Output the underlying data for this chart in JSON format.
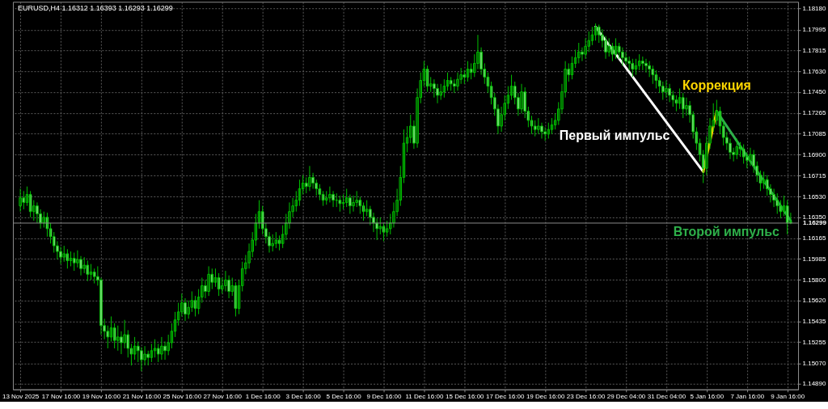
{
  "chart_data": {
    "type": "candlestick",
    "title": "EURUSD,H4 1.16312 1.16393 1.16293 1.16299",
    "categories": [
      "13 Nov 2025",
      null,
      null,
      null,
      null,
      null,
      null,
      null,
      null,
      null,
      null,
      null,
      "17 Nov 16:00",
      null,
      null,
      null,
      null,
      null,
      null,
      null,
      null,
      null,
      null,
      null,
      "19 Nov 16:00",
      null,
      null,
      null,
      null,
      null,
      null,
      null,
      null,
      null,
      null,
      null,
      "21 Nov 16:00",
      null,
      null,
      null,
      null,
      null,
      null,
      null,
      null,
      null,
      null,
      null,
      "25 Nov 16:00",
      null,
      null,
      null,
      null,
      null,
      null,
      null,
      null,
      null,
      null,
      null,
      "27 Nov 16:00",
      null,
      null,
      null,
      null,
      null,
      null,
      null,
      null,
      null,
      null,
      null,
      "1 Dec 16:00",
      null,
      null,
      null,
      null,
      null,
      null,
      null,
      null,
      null,
      null,
      null,
      "3 Dec 16:00",
      null,
      null,
      null,
      null,
      null,
      null,
      null,
      null,
      null,
      null,
      null,
      "5 Dec 16:00",
      null,
      null,
      null,
      null,
      null,
      null,
      null,
      null,
      null,
      null,
      null,
      "9 Dec 16:00",
      null,
      null,
      null,
      null,
      null,
      null,
      null,
      null,
      null,
      null,
      null,
      "11 Dec 16:00",
      null,
      null,
      null,
      null,
      null,
      null,
      null,
      null,
      null,
      null,
      null,
      "15 Dec 16:00",
      null,
      null,
      null,
      null,
      null,
      null,
      null,
      null,
      null,
      null,
      null,
      "17 Dec 16:00",
      null,
      null,
      null,
      null,
      null,
      null,
      null,
      null,
      null,
      null,
      null,
      "19 Dec 16:00",
      null,
      null,
      null,
      null,
      null,
      null,
      null,
      null,
      null,
      null,
      null,
      "23 Dec 16:00",
      null,
      null,
      null,
      null,
      null,
      null,
      null,
      null,
      null,
      null,
      null,
      "29 Dec 04:00",
      null,
      null,
      null,
      null,
      null,
      null,
      null,
      null,
      null,
      null,
      null,
      "31 Dec 04:00",
      null,
      null,
      null,
      null,
      null,
      null,
      null,
      null,
      null,
      null,
      null,
      "5 Jan 16:00",
      null,
      null,
      null,
      null,
      null,
      null,
      null,
      null,
      null,
      null,
      null,
      "7 Jan 16:00",
      null,
      null,
      null,
      null,
      null,
      null,
      null,
      null,
      null,
      null,
      null,
      "9 Jan 16:00",
      null
    ],
    "ohlc": [
      [
        1.1645,
        1.166,
        1.164,
        1.1652
      ],
      [
        1.1652,
        1.1658,
        1.1642,
        1.1648
      ],
      [
        1.1648,
        1.1662,
        1.1645,
        1.1655
      ],
      [
        1.1655,
        1.1658,
        1.1635,
        1.164
      ],
      [
        1.164,
        1.165,
        1.1632,
        1.1645
      ],
      [
        1.1645,
        1.1648,
        1.163,
        1.1638
      ],
      [
        1.1638,
        1.1642,
        1.1625,
        1.163
      ],
      [
        1.163,
        1.164,
        1.1626,
        1.1635
      ],
      [
        1.1635,
        1.1639,
        1.1618,
        1.1625
      ],
      [
        1.1625,
        1.163,
        1.1612,
        1.1618
      ],
      [
        1.1618,
        1.1622,
        1.1604,
        1.161
      ],
      [
        1.161,
        1.1614,
        1.1598,
        1.1605
      ],
      [
        1.1605,
        1.1609,
        1.1594,
        1.16
      ],
      [
        1.16,
        1.161,
        1.1596,
        1.1603
      ],
      [
        1.1603,
        1.1607,
        1.159,
        1.1597
      ],
      [
        1.1597,
        1.1605,
        1.1592,
        1.1599
      ],
      [
        1.1599,
        1.1604,
        1.1588,
        1.1595
      ],
      [
        1.1595,
        1.1606,
        1.1591,
        1.1598
      ],
      [
        1.1598,
        1.1601,
        1.1584,
        1.159
      ],
      [
        1.159,
        1.16,
        1.1586,
        1.1593
      ],
      [
        1.1593,
        1.1597,
        1.1579,
        1.1585
      ],
      [
        1.1585,
        1.1594,
        1.158,
        1.1587
      ],
      [
        1.1587,
        1.159,
        1.1577,
        1.1583
      ],
      [
        1.1583,
        1.1592,
        1.1575,
        1.158
      ],
      [
        1.158,
        1.1582,
        1.1532,
        1.154
      ],
      [
        1.154,
        1.1546,
        1.1528,
        1.1535
      ],
      [
        1.1535,
        1.154,
        1.152,
        1.153
      ],
      [
        1.153,
        1.1548,
        1.1526,
        1.1538
      ],
      [
        1.1538,
        1.1542,
        1.152,
        1.1527
      ],
      [
        1.1527,
        1.154,
        1.1518,
        1.153
      ],
      [
        1.153,
        1.1535,
        1.1515,
        1.1525
      ],
      [
        1.1525,
        1.1545,
        1.152,
        1.1532
      ],
      [
        1.1532,
        1.1536,
        1.1512,
        1.152
      ],
      [
        1.152,
        1.1524,
        1.1505,
        1.1515
      ],
      [
        1.1515,
        1.153,
        1.151,
        1.1522
      ],
      [
        1.1522,
        1.1526,
        1.1508,
        1.1518
      ],
      [
        1.1518,
        1.1521,
        1.15,
        1.151
      ],
      [
        1.151,
        1.1522,
        1.1505,
        1.1515
      ],
      [
        1.1515,
        1.1518,
        1.1505,
        1.1512
      ],
      [
        1.1512,
        1.1524,
        1.1508,
        1.1518
      ],
      [
        1.1518,
        1.1528,
        1.1512,
        1.152
      ],
      [
        1.152,
        1.1524,
        1.1508,
        1.1515
      ],
      [
        1.1515,
        1.153,
        1.151,
        1.1522
      ],
      [
        1.1522,
        1.1526,
        1.151,
        1.1518
      ],
      [
        1.1518,
        1.1532,
        1.1514,
        1.1525
      ],
      [
        1.1525,
        1.1542,
        1.152,
        1.1535
      ],
      [
        1.1535,
        1.1552,
        1.153,
        1.1545
      ],
      [
        1.1545,
        1.156,
        1.154,
        1.1552
      ],
      [
        1.1552,
        1.1568,
        1.1548,
        1.156
      ],
      [
        1.156,
        1.1564,
        1.1544,
        1.155
      ],
      [
        1.155,
        1.1562,
        1.1546,
        1.1556
      ],
      [
        1.1556,
        1.157,
        1.1552,
        1.1562
      ],
      [
        1.1562,
        1.1566,
        1.1548,
        1.1555
      ],
      [
        1.1555,
        1.1572,
        1.155,
        1.1565
      ],
      [
        1.1565,
        1.1582,
        1.156,
        1.1575
      ],
      [
        1.1575,
        1.158,
        1.1564,
        1.157
      ],
      [
        1.157,
        1.1592,
        1.1566,
        1.1585
      ],
      [
        1.1585,
        1.159,
        1.1572,
        1.1578
      ],
      [
        1.1578,
        1.159,
        1.1574,
        1.1582
      ],
      [
        1.1582,
        1.1586,
        1.1566,
        1.1572
      ],
      [
        1.1572,
        1.1582,
        1.1568,
        1.1575
      ],
      [
        1.1575,
        1.1588,
        1.157,
        1.158
      ],
      [
        1.158,
        1.1584,
        1.1564,
        1.157
      ],
      [
        1.157,
        1.1582,
        1.1566,
        1.1575
      ],
      [
        1.1575,
        1.1578,
        1.1548,
        1.1555
      ],
      [
        1.1555,
        1.158,
        1.155,
        1.1575
      ],
      [
        1.1575,
        1.1596,
        1.157,
        1.159
      ],
      [
        1.159,
        1.1602,
        1.1585,
        1.1595
      ],
      [
        1.1595,
        1.1612,
        1.159,
        1.1605
      ],
      [
        1.1605,
        1.1622,
        1.16,
        1.1615
      ],
      [
        1.1615,
        1.1638,
        1.161,
        1.163
      ],
      [
        1.163,
        1.165,
        1.1625,
        1.164
      ],
      [
        1.164,
        1.1645,
        1.162,
        1.1625
      ],
      [
        1.1625,
        1.163,
        1.1612,
        1.1618
      ],
      [
        1.1618,
        1.1622,
        1.1604,
        1.161
      ],
      [
        1.161,
        1.162,
        1.1605,
        1.1612
      ],
      [
        1.1612,
        1.1622,
        1.1608,
        1.1615
      ],
      [
        1.1615,
        1.1619,
        1.1606,
        1.1612
      ],
      [
        1.1612,
        1.1628,
        1.1608,
        1.162
      ],
      [
        1.162,
        1.1638,
        1.1615,
        1.163
      ],
      [
        1.163,
        1.1648,
        1.1625,
        1.164
      ],
      [
        1.164,
        1.1652,
        1.1635,
        1.1645
      ],
      [
        1.1645,
        1.1658,
        1.164,
        1.165
      ],
      [
        1.165,
        1.1668,
        1.1645,
        1.166
      ],
      [
        1.166,
        1.1672,
        1.1655,
        1.1665
      ],
      [
        1.1665,
        1.167,
        1.1656,
        1.1662
      ],
      [
        1.1662,
        1.168,
        1.1658,
        1.167
      ],
      [
        1.167,
        1.1674,
        1.166,
        1.1665
      ],
      [
        1.1665,
        1.1668,
        1.1654,
        1.166
      ],
      [
        1.166,
        1.1664,
        1.165,
        1.1655
      ],
      [
        1.1655,
        1.1658,
        1.1645,
        1.165
      ],
      [
        1.165,
        1.1658,
        1.1646,
        1.1652
      ],
      [
        1.1652,
        1.1662,
        1.1648,
        1.1655
      ],
      [
        1.1655,
        1.1658,
        1.1644,
        1.165
      ],
      [
        1.165,
        1.1656,
        1.1644,
        1.165
      ],
      [
        1.165,
        1.1654,
        1.164,
        1.1647
      ],
      [
        1.1647,
        1.1655,
        1.1642,
        1.1648
      ],
      [
        1.1648,
        1.166,
        1.1644,
        1.1652
      ],
      [
        1.1652,
        1.1655,
        1.1638,
        1.1645
      ],
      [
        1.1645,
        1.1654,
        1.164,
        1.1648
      ],
      [
        1.1648,
        1.1658,
        1.1644,
        1.165
      ],
      [
        1.165,
        1.1653,
        1.1638,
        1.1645
      ],
      [
        1.1645,
        1.1648,
        1.1632,
        1.164
      ],
      [
        1.164,
        1.165,
        1.1636,
        1.1642
      ],
      [
        1.1642,
        1.1645,
        1.1628,
        1.1635
      ],
      [
        1.1635,
        1.1639,
        1.1622,
        1.163
      ],
      [
        1.163,
        1.1634,
        1.1615,
        1.1625
      ],
      [
        1.1625,
        1.1635,
        1.162,
        1.1627
      ],
      [
        1.1627,
        1.163,
        1.1614,
        1.1622
      ],
      [
        1.1622,
        1.1632,
        1.1618,
        1.1625
      ],
      [
        1.1625,
        1.1638,
        1.162,
        1.163
      ],
      [
        1.163,
        1.1648,
        1.1626,
        1.164
      ],
      [
        1.164,
        1.166,
        1.1636,
        1.165
      ],
      [
        1.165,
        1.168,
        1.1645,
        1.167
      ],
      [
        1.167,
        1.1712,
        1.1665,
        1.17
      ],
      [
        1.17,
        1.1715,
        1.1692,
        1.1705
      ],
      [
        1.1705,
        1.1725,
        1.17,
        1.1715
      ],
      [
        1.1715,
        1.172,
        1.1695,
        1.17
      ],
      [
        1.17,
        1.1748,
        1.1696,
        1.174
      ],
      [
        1.174,
        1.1762,
        1.1735,
        1.1755
      ],
      [
        1.1755,
        1.1772,
        1.175,
        1.1765
      ],
      [
        1.1765,
        1.1768,
        1.1745,
        1.175
      ],
      [
        1.175,
        1.1758,
        1.1745,
        1.1752
      ],
      [
        1.1752,
        1.1756,
        1.174,
        1.1748
      ],
      [
        1.1748,
        1.1752,
        1.1735,
        1.1742
      ],
      [
        1.1742,
        1.1752,
        1.1738,
        1.1745
      ],
      [
        1.1745,
        1.1756,
        1.174,
        1.175
      ],
      [
        1.175,
        1.1762,
        1.1746,
        1.1755
      ],
      [
        1.1755,
        1.1758,
        1.1746,
        1.1752
      ],
      [
        1.1752,
        1.1756,
        1.1744,
        1.175
      ],
      [
        1.175,
        1.1762,
        1.1746,
        1.1756
      ],
      [
        1.1756,
        1.1766,
        1.1752,
        1.176
      ],
      [
        1.176,
        1.1764,
        1.1752,
        1.1758
      ],
      [
        1.1758,
        1.1772,
        1.1754,
        1.1765
      ],
      [
        1.1765,
        1.177,
        1.1756,
        1.1762
      ],
      [
        1.1762,
        1.1778,
        1.1758,
        1.177
      ],
      [
        1.177,
        1.1795,
        1.1765,
        1.178
      ],
      [
        1.178,
        1.1784,
        1.176,
        1.1765
      ],
      [
        1.1765,
        1.177,
        1.1752,
        1.1758
      ],
      [
        1.1758,
        1.1762,
        1.1744,
        1.175
      ],
      [
        1.175,
        1.1754,
        1.1734,
        1.174
      ],
      [
        1.174,
        1.1744,
        1.1724,
        1.173
      ],
      [
        1.173,
        1.1734,
        1.1708,
        1.1715
      ],
      [
        1.1715,
        1.1732,
        1.171,
        1.1725
      ],
      [
        1.1725,
        1.1742,
        1.172,
        1.1735
      ],
      [
        1.1735,
        1.175,
        1.173,
        1.1742
      ],
      [
        1.1742,
        1.176,
        1.1738,
        1.175
      ],
      [
        1.175,
        1.1754,
        1.1734,
        1.174
      ],
      [
        1.174,
        1.1744,
        1.1724,
        1.173
      ],
      [
        1.173,
        1.1752,
        1.1726,
        1.1745
      ],
      [
        1.1745,
        1.1749,
        1.1722,
        1.1728
      ],
      [
        1.1728,
        1.1732,
        1.1714,
        1.172
      ],
      [
        1.172,
        1.1724,
        1.1708,
        1.1715
      ],
      [
        1.1715,
        1.172,
        1.1706,
        1.1712
      ],
      [
        1.1712,
        1.1722,
        1.1708,
        1.1715
      ],
      [
        1.1715,
        1.1718,
        1.1704,
        1.171
      ],
      [
        1.171,
        1.1714,
        1.1702,
        1.1708
      ],
      [
        1.1708,
        1.1718,
        1.1704,
        1.1712
      ],
      [
        1.1712,
        1.1722,
        1.1708,
        1.1716
      ],
      [
        1.1716,
        1.1726,
        1.1712,
        1.172
      ],
      [
        1.172,
        1.1736,
        1.1716,
        1.173
      ],
      [
        1.173,
        1.1752,
        1.1726,
        1.1745
      ],
      [
        1.1745,
        1.1772,
        1.174,
        1.1765
      ],
      [
        1.1765,
        1.177,
        1.1754,
        1.176
      ],
      [
        1.176,
        1.1776,
        1.1756,
        1.177
      ],
      [
        1.177,
        1.1782,
        1.1766,
        1.1775
      ],
      [
        1.1775,
        1.1788,
        1.177,
        1.178
      ],
      [
        1.178,
        1.1784,
        1.1772,
        1.1778
      ],
      [
        1.1778,
        1.1792,
        1.1774,
        1.1785
      ],
      [
        1.1785,
        1.1798,
        1.178,
        1.179
      ],
      [
        1.179,
        1.1802,
        1.1786,
        1.1795
      ],
      [
        1.1795,
        1.1805,
        1.179,
        1.1802
      ],
      [
        1.1802,
        1.1804,
        1.1788,
        1.1795
      ],
      [
        1.1795,
        1.18,
        1.1784,
        1.179
      ],
      [
        1.179,
        1.1794,
        1.1774,
        1.178
      ],
      [
        1.178,
        1.1792,
        1.1776,
        1.1785
      ],
      [
        1.1785,
        1.1788,
        1.1772,
        1.1778
      ],
      [
        1.1778,
        1.1792,
        1.1774,
        1.1785
      ],
      [
        1.1785,
        1.1788,
        1.1774,
        1.178
      ],
      [
        1.178,
        1.1784,
        1.1768,
        1.1775
      ],
      [
        1.1775,
        1.178,
        1.1769,
        1.1772
      ],
      [
        1.1772,
        1.1776,
        1.1764,
        1.177
      ],
      [
        1.177,
        1.1774,
        1.1758,
        1.1765
      ],
      [
        1.1765,
        1.1774,
        1.176,
        1.1768
      ],
      [
        1.1768,
        1.1778,
        1.1764,
        1.1772
      ],
      [
        1.1772,
        1.1776,
        1.1764,
        1.177
      ],
      [
        1.177,
        1.1774,
        1.1762,
        1.1768
      ],
      [
        1.1768,
        1.1772,
        1.1758,
        1.1765
      ],
      [
        1.1765,
        1.1768,
        1.1752,
        1.176
      ],
      [
        1.176,
        1.1764,
        1.1748,
        1.1755
      ],
      [
        1.1755,
        1.1758,
        1.1744,
        1.175
      ],
      [
        1.175,
        1.1754,
        1.1738,
        1.1745
      ],
      [
        1.1745,
        1.1755,
        1.174,
        1.1748
      ],
      [
        1.1748,
        1.1752,
        1.1736,
        1.1742
      ],
      [
        1.1742,
        1.1746,
        1.1732,
        1.1738
      ],
      [
        1.1738,
        1.1742,
        1.1728,
        1.1735
      ],
      [
        1.1735,
        1.1748,
        1.173,
        1.174
      ],
      [
        1.174,
        1.1744,
        1.1722,
        1.173
      ],
      [
        1.173,
        1.174,
        1.1724,
        1.1733
      ],
      [
        1.1733,
        1.1737,
        1.1718,
        1.1725
      ],
      [
        1.1725,
        1.1728,
        1.1704,
        1.171
      ],
      [
        1.171,
        1.1714,
        1.1694,
        1.17
      ],
      [
        1.17,
        1.1704,
        1.1684,
        1.169
      ],
      [
        1.169,
        1.1694,
        1.1665,
        1.1678
      ],
      [
        1.1678,
        1.1706,
        1.1672,
        1.17
      ],
      [
        1.17,
        1.1722,
        1.1695,
        1.1715
      ],
      [
        1.1715,
        1.1735,
        1.171,
        1.172
      ],
      [
        1.172,
        1.1738,
        1.1716,
        1.1728
      ],
      [
        1.1728,
        1.1732,
        1.1708,
        1.1715
      ],
      [
        1.1715,
        1.1719,
        1.1698,
        1.1705
      ],
      [
        1.1705,
        1.171,
        1.1694,
        1.17
      ],
      [
        1.17,
        1.1704,
        1.1686,
        1.1692
      ],
      [
        1.1692,
        1.1696,
        1.1684,
        1.169
      ],
      [
        1.169,
        1.1704,
        1.1686,
        1.1697
      ],
      [
        1.1697,
        1.1701,
        1.1688,
        1.1695
      ],
      [
        1.1695,
        1.1699,
        1.1682,
        1.1688
      ],
      [
        1.1688,
        1.1692,
        1.1678,
        1.1685
      ],
      [
        1.1685,
        1.1696,
        1.168,
        1.169
      ],
      [
        1.169,
        1.1694,
        1.1674,
        1.168
      ],
      [
        1.168,
        1.1684,
        1.1666,
        1.1672
      ],
      [
        1.1672,
        1.1676,
        1.1658,
        1.1665
      ],
      [
        1.1665,
        1.1675,
        1.166,
        1.1668
      ],
      [
        1.1668,
        1.1672,
        1.1654,
        1.166
      ],
      [
        1.166,
        1.1664,
        1.1648,
        1.1655
      ],
      [
        1.1655,
        1.166,
        1.1644,
        1.165
      ],
      [
        1.165,
        1.1656,
        1.1638,
        1.1645
      ],
      [
        1.1645,
        1.165,
        1.1634,
        1.164
      ],
      [
        1.164,
        1.1654,
        1.1636,
        1.1645
      ],
      [
        1.1645,
        1.165,
        1.162,
        1.163
      ],
      [
        1.1631,
        1.1639,
        1.1629,
        1.163
      ]
    ],
    "color": "#00c000",
    "series": [
      {
        "type": "line",
        "name": "Первый импульс",
        "color": "#ffffff",
        "values": [
          null,
          null,
          null,
          null,
          null,
          null,
          null,
          null,
          null,
          null,
          null,
          null,
          null,
          null,
          null,
          null,
          null,
          null,
          null,
          null,
          null,
          null,
          null,
          null,
          null,
          null,
          null,
          null,
          null,
          null,
          null,
          null,
          null,
          null,
          null,
          null,
          null,
          null,
          null,
          null,
          null,
          null,
          null,
          null,
          null,
          null,
          null,
          null,
          null,
          null,
          null,
          null,
          null,
          null,
          null,
          null,
          null,
          null,
          null,
          null,
          null,
          null,
          null,
          null,
          null,
          null,
          null,
          null,
          null,
          null,
          null,
          null,
          null,
          null,
          null,
          null,
          null,
          null,
          null,
          null,
          null,
          null,
          null,
          null,
          null,
          null,
          null,
          null,
          null,
          null,
          null,
          null,
          null,
          null,
          null,
          null,
          null,
          null,
          null,
          null,
          null,
          null,
          null,
          null,
          null,
          null,
          null,
          null,
          null,
          null,
          null,
          null,
          null,
          null,
          null,
          null,
          null,
          null,
          null,
          null,
          null,
          null,
          null,
          null,
          null,
          null,
          null,
          null,
          null,
          null,
          null,
          null,
          null,
          null,
          null,
          null,
          null,
          null,
          null,
          null,
          null,
          null,
          null,
          null,
          null,
          null,
          null,
          null,
          null,
          null,
          null,
          null,
          null,
          null,
          null,
          null,
          null,
          null,
          null,
          null,
          null,
          null,
          null,
          null,
          null,
          null,
          null,
          null,
          null,
          null,
          null,
          1.1802,
          null,
          null,
          null,
          null,
          null,
          null,
          null,
          null,
          null,
          null,
          null,
          null,
          null,
          null,
          null,
          null,
          null,
          null,
          null,
          null,
          null,
          null,
          null,
          null,
          null,
          null,
          null,
          null,
          null,
          null,
          null,
          1.1675,
          null,
          null,
          null,
          null,
          null,
          null,
          null,
          null,
          null,
          null,
          null,
          null,
          null,
          null,
          null,
          null,
          null,
          null,
          null,
          null,
          null,
          null,
          null,
          null,
          null,
          null
        ]
      },
      {
        "type": "line",
        "name": "Коррекция",
        "color": "#ffd700",
        "values": [
          null,
          null,
          null,
          null,
          null,
          null,
          null,
          null,
          null,
          null,
          null,
          null,
          null,
          null,
          null,
          null,
          null,
          null,
          null,
          null,
          null,
          null,
          null,
          null,
          null,
          null,
          null,
          null,
          null,
          null,
          null,
          null,
          null,
          null,
          null,
          null,
          null,
          null,
          null,
          null,
          null,
          null,
          null,
          null,
          null,
          null,
          null,
          null,
          null,
          null,
          null,
          null,
          null,
          null,
          null,
          null,
          null,
          null,
          null,
          null,
          null,
          null,
          null,
          null,
          null,
          null,
          null,
          null,
          null,
          null,
          null,
          null,
          null,
          null,
          null,
          null,
          null,
          null,
          null,
          null,
          null,
          null,
          null,
          null,
          null,
          null,
          null,
          null,
          null,
          null,
          null,
          null,
          null,
          null,
          null,
          null,
          null,
          null,
          null,
          null,
          null,
          null,
          null,
          null,
          null,
          null,
          null,
          null,
          null,
          null,
          null,
          null,
          null,
          null,
          null,
          null,
          null,
          null,
          null,
          null,
          null,
          null,
          null,
          null,
          null,
          null,
          null,
          null,
          null,
          null,
          null,
          null,
          null,
          null,
          null,
          null,
          null,
          null,
          null,
          null,
          null,
          null,
          null,
          null,
          null,
          null,
          null,
          null,
          null,
          null,
          null,
          null,
          null,
          null,
          null,
          null,
          null,
          null,
          null,
          null,
          null,
          null,
          null,
          null,
          null,
          null,
          null,
          null,
          null,
          null,
          null,
          null,
          null,
          null,
          null,
          null,
          null,
          null,
          null,
          null,
          null,
          null,
          null,
          null,
          null,
          null,
          null,
          null,
          null,
          null,
          null,
          null,
          null,
          null,
          null,
          null,
          null,
          null,
          null,
          null,
          null,
          null,
          null,
          1.1675,
          null,
          null,
          null,
          1.1728,
          null,
          null,
          null,
          null,
          null,
          null,
          null,
          null,
          null,
          null,
          null,
          null,
          null,
          null,
          null,
          null,
          null,
          null,
          null,
          null,
          null,
          null
        ]
      },
      {
        "type": "line",
        "name": "Второй импульс",
        "color": "#2eb04a",
        "values": [
          null,
          null,
          null,
          null,
          null,
          null,
          null,
          null,
          null,
          null,
          null,
          null,
          null,
          null,
          null,
          null,
          null,
          null,
          null,
          null,
          null,
          null,
          null,
          null,
          null,
          null,
          null,
          null,
          null,
          null,
          null,
          null,
          null,
          null,
          null,
          null,
          null,
          null,
          null,
          null,
          null,
          null,
          null,
          null,
          null,
          null,
          null,
          null,
          null,
          null,
          null,
          null,
          null,
          null,
          null,
          null,
          null,
          null,
          null,
          null,
          null,
          null,
          null,
          null,
          null,
          null,
          null,
          null,
          null,
          null,
          null,
          null,
          null,
          null,
          null,
          null,
          null,
          null,
          null,
          null,
          null,
          null,
          null,
          null,
          null,
          null,
          null,
          null,
          null,
          null,
          null,
          null,
          null,
          null,
          null,
          null,
          null,
          null,
          null,
          null,
          null,
          null,
          null,
          null,
          null,
          null,
          null,
          null,
          null,
          null,
          null,
          null,
          null,
          null,
          null,
          null,
          null,
          null,
          null,
          null,
          null,
          null,
          null,
          null,
          null,
          null,
          null,
          null,
          null,
          null,
          null,
          null,
          null,
          null,
          null,
          null,
          null,
          null,
          null,
          null,
          null,
          null,
          null,
          null,
          null,
          null,
          null,
          null,
          null,
          null,
          null,
          null,
          null,
          null,
          null,
          null,
          null,
          null,
          null,
          null,
          null,
          null,
          null,
          null,
          null,
          null,
          null,
          null,
          null,
          null,
          null,
          null,
          null,
          null,
          null,
          null,
          null,
          null,
          null,
          null,
          null,
          null,
          null,
          null,
          null,
          null,
          null,
          null,
          null,
          null,
          null,
          null,
          null,
          null,
          null,
          null,
          null,
          null,
          null,
          null,
          null,
          null,
          null,
          null,
          null,
          null,
          null,
          1.1728,
          null,
          null,
          null,
          null,
          null,
          null,
          null,
          null,
          null,
          null,
          null,
          null,
          null,
          null,
          null,
          null,
          null,
          null,
          null,
          null,
          null,
          1.1632
        ]
      }
    ],
    "ylim": [
      1.1484,
      1.1824
    ],
    "yticks": [
      {
        "value": 1.1818,
        "label": "1.18180"
      },
      {
        "value": 1.17995,
        "label": "1.17995"
      },
      {
        "value": 1.17815,
        "label": "1.17815"
      },
      {
        "value": 1.1763,
        "label": "1.17630"
      },
      {
        "value": 1.1745,
        "label": "1.17450"
      },
      {
        "value": 1.17265,
        "label": "1.17265"
      },
      {
        "value": 1.17085,
        "label": "1.17085"
      },
      {
        "value": 1.169,
        "label": "1.16900"
      },
      {
        "value": 1.16715,
        "label": "1.16715"
      },
      {
        "value": 1.1653,
        "label": "1.16530"
      },
      {
        "value": 1.1635,
        "label": "1.16350"
      },
      {
        "value": 1.16165,
        "label": "1.16165"
      },
      {
        "value": 1.15985,
        "label": "1.15985"
      },
      {
        "value": 1.158,
        "label": "1.15800"
      },
      {
        "value": 1.1562,
        "label": "1.15620"
      },
      {
        "value": 1.15435,
        "label": "1.15435"
      },
      {
        "value": 1.15255,
        "label": "1.15255"
      },
      {
        "value": 1.1507,
        "label": "1.15070"
      },
      {
        "value": 1.1489,
        "label": "1.14890"
      }
    ],
    "ref_lines": [
      {
        "axis": "y",
        "value": 1.16299,
        "label": "1.16299",
        "color": "#8c8c8c"
      }
    ],
    "grid": true,
    "legend": false
  }
}
